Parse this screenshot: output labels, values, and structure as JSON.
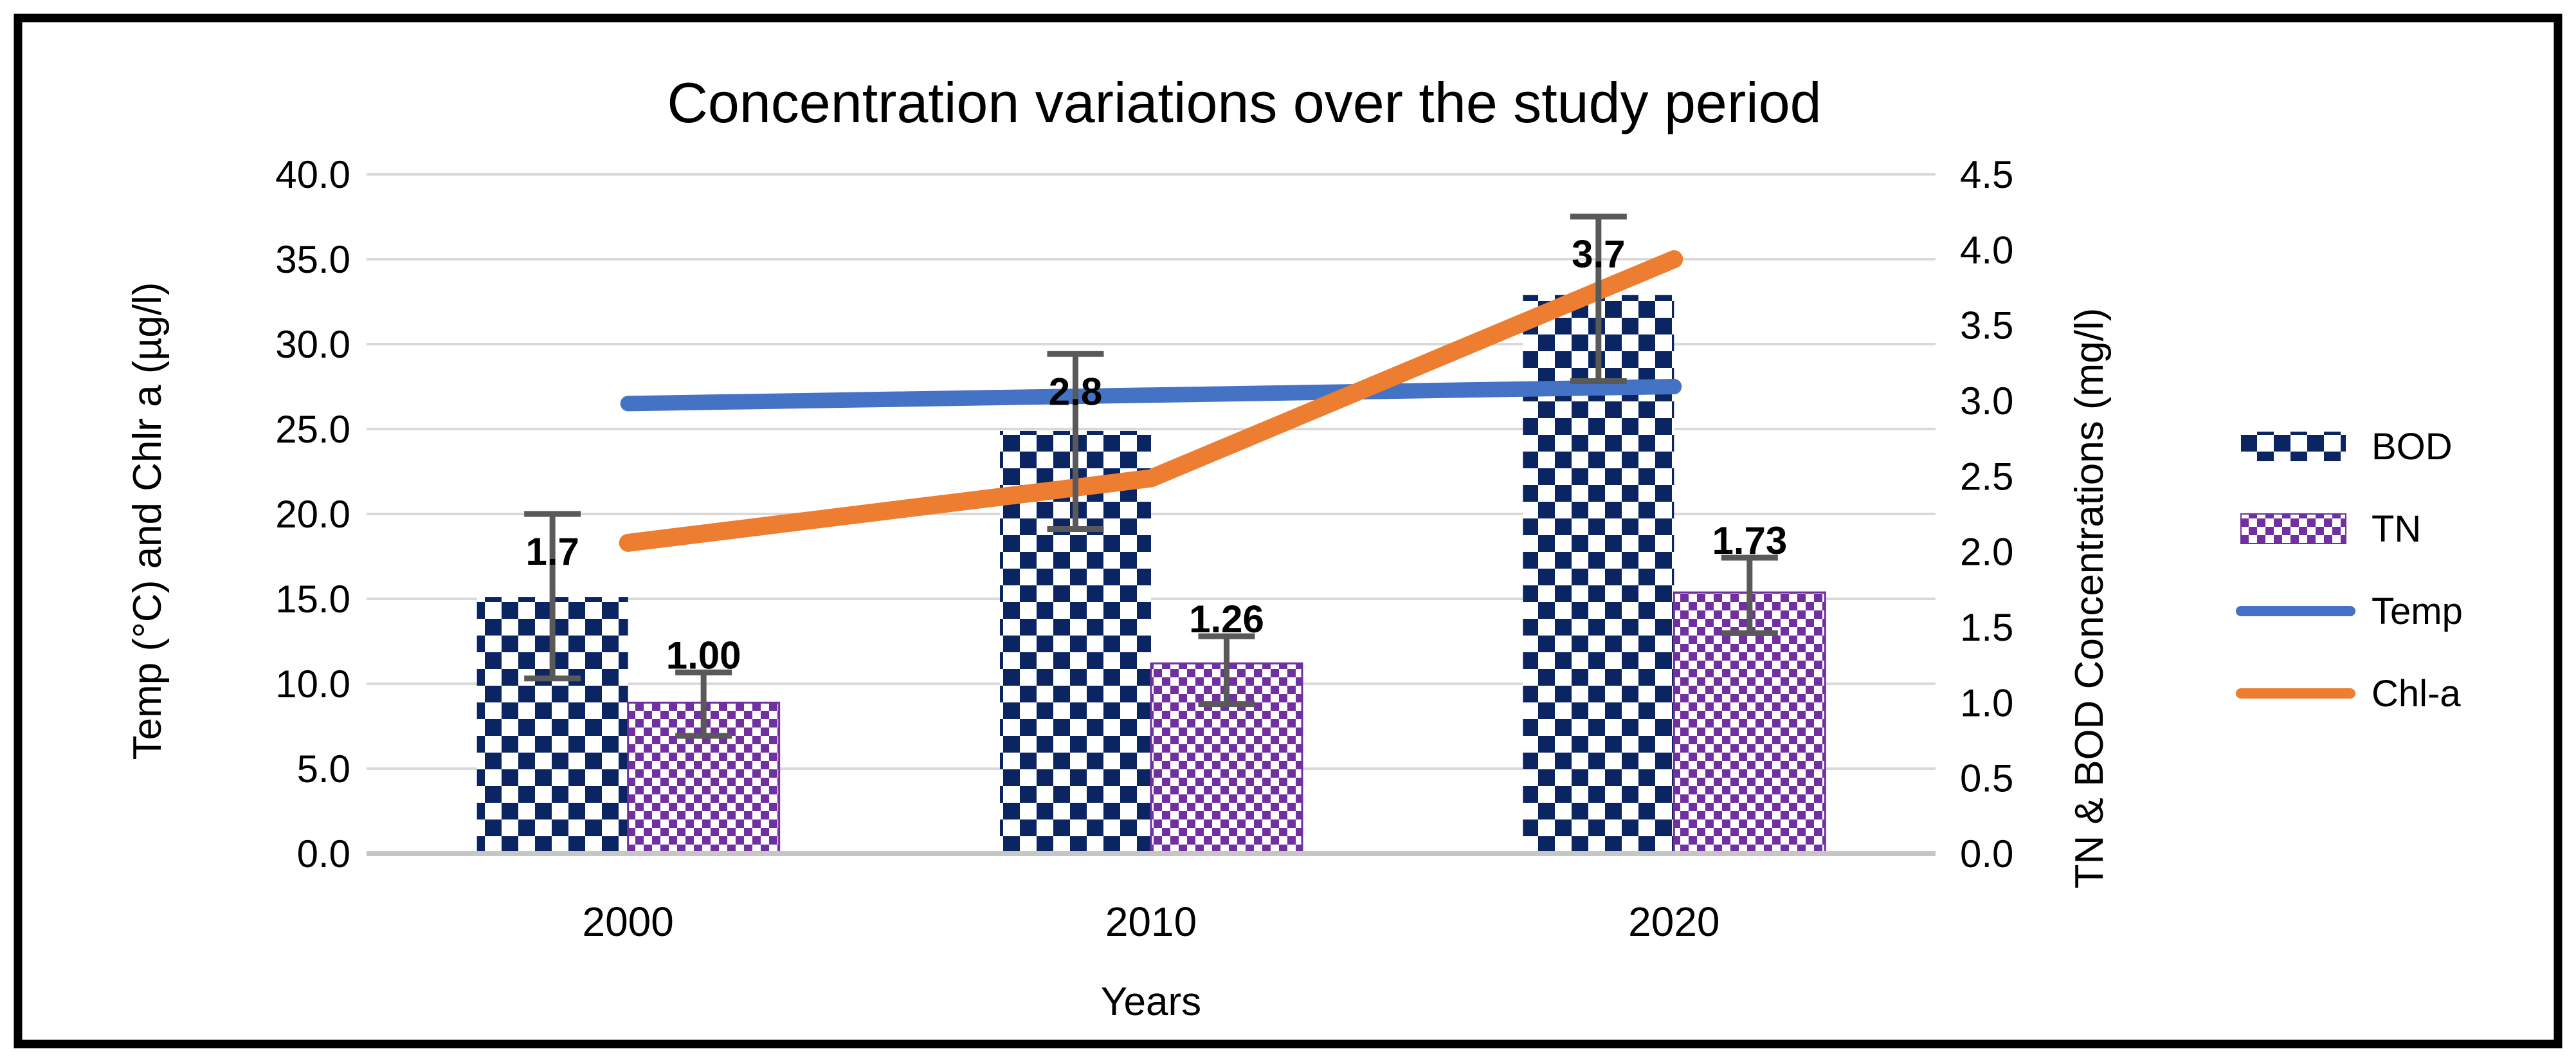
{
  "chart_data": {
    "type": "combo-bar-line",
    "title": "Concentration variations over the study period",
    "categories": [
      "2000",
      "2010",
      "2020"
    ],
    "x_axis_title": "Years",
    "left_axis": {
      "title": "Temp (°C) and Chlr a (µg/l)",
      "min": 0,
      "max": 40,
      "step": 5,
      "tick_labels": [
        "40.0",
        "35.0",
        "30.0",
        "25.0",
        "20.0",
        "15.0",
        "10.0",
        "5.0",
        "0.0"
      ]
    },
    "right_axis": {
      "title": "TN & BOD Concentrations (mg/l)",
      "min": 0,
      "max": 4.5,
      "step": 0.5,
      "tick_labels": [
        "4.5",
        "4.0",
        "3.5",
        "3.0",
        "2.5",
        "2.0",
        "1.5",
        "1.0",
        "0.5",
        "0.0"
      ]
    },
    "series": [
      {
        "name": "BOD",
        "type": "bar",
        "axis": "right",
        "color": "#0b2563",
        "pattern": "checker-large",
        "values": [
          1.7,
          2.8,
          3.7
        ],
        "data_labels": [
          "1.7",
          "2.8",
          "3.7"
        ],
        "error_plus": [
          0.55,
          0.51,
          0.52
        ],
        "error_minus": [
          0.54,
          0.65,
          0.57
        ]
      },
      {
        "name": "TN",
        "type": "bar",
        "axis": "right",
        "color": "#7030A0",
        "pattern": "checker-small",
        "values": [
          1.0,
          1.26,
          1.73
        ],
        "data_labels": [
          "1.00",
          "1.26",
          "1.73"
        ],
        "error_plus": [
          0.2,
          0.18,
          0.23
        ],
        "error_minus": [
          0.22,
          0.27,
          0.27
        ]
      },
      {
        "name": "Temp",
        "type": "line",
        "axis": "left",
        "color": "#4472C4",
        "values": [
          26.5,
          27.0,
          27.5
        ]
      },
      {
        "name": "Chl-a",
        "type": "line",
        "axis": "left",
        "color": "#ED7D31",
        "values": [
          18.3,
          22.1,
          35.0
        ]
      }
    ],
    "legend": {
      "position": "right",
      "entries": [
        "BOD",
        "TN",
        "Temp",
        "Chl-a"
      ]
    },
    "grid": true,
    "colors": {
      "gridline": "#D9D9D9",
      "axis_line": "#C6C6C6",
      "error_bar": "#595959",
      "frame": "#000000",
      "text": "#000000"
    }
  }
}
